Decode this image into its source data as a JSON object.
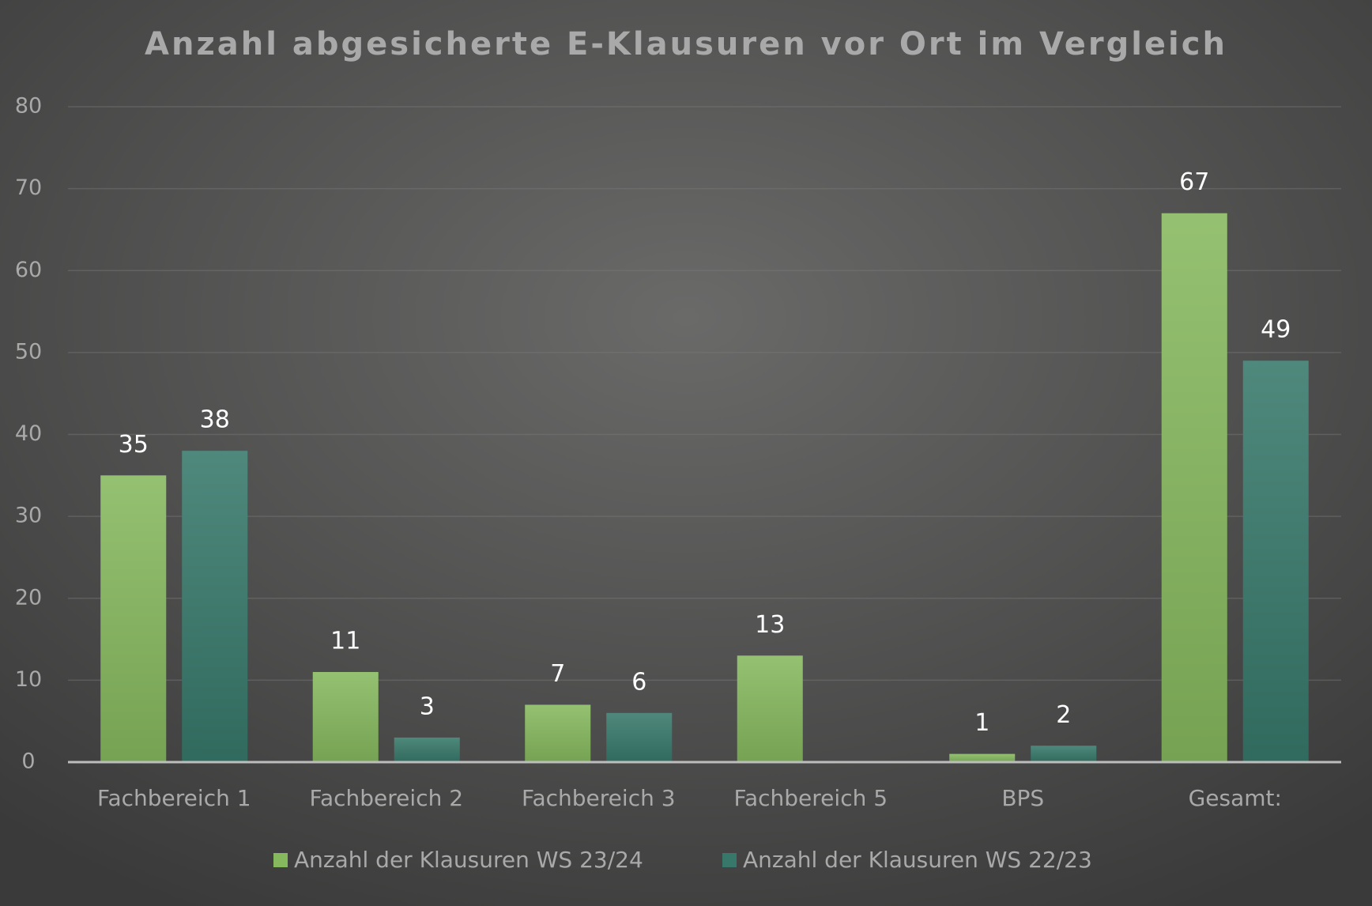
{
  "chart_data": {
    "type": "bar",
    "title": "Anzahl abgesicherte E-Klausuren vor Ort im Vergleich",
    "categories": [
      "Fachbereich 1",
      "Fachbereich 2",
      "Fachbereich 3",
      "Fachbereich 5",
      "BPS",
      "Gesamt:"
    ],
    "series": [
      {
        "name": "Anzahl der Klausuren WS 23/24",
        "color": "#86b95e",
        "values": [
          35,
          11,
          7,
          13,
          1,
          67
        ]
      },
      {
        "name": "Anzahl der Klausuren WS 22/23",
        "color": "#37786a",
        "values": [
          38,
          3,
          6,
          null,
          2,
          49
        ]
      }
    ],
    "ylim": [
      0,
      80
    ],
    "yticks": [
      0,
      10,
      20,
      30,
      40,
      50,
      60,
      70,
      80
    ],
    "grid": true,
    "legend": "bottom"
  }
}
